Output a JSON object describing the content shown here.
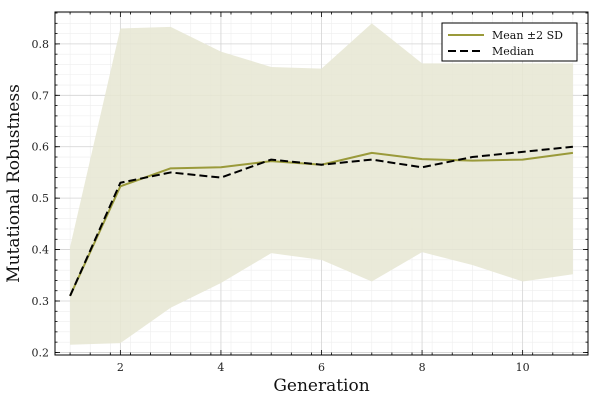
{
  "chart_data": {
    "type": "line",
    "title": "",
    "xlabel": "Generation",
    "ylabel": "Mutational Robustness",
    "xlim": [
      0.7,
      11.3
    ],
    "ylim": [
      0.195,
      0.862
    ],
    "xticks": [
      2,
      4,
      6,
      8,
      10
    ],
    "yticks": [
      0.2,
      0.3,
      0.4,
      0.5,
      0.6,
      0.7,
      0.8
    ],
    "grid": true,
    "minor_grid": true,
    "legend_position": "top-right",
    "x": [
      1,
      2,
      3,
      4,
      5,
      6,
      7,
      8,
      9,
      10,
      11
    ],
    "series": [
      {
        "name": "Mean ±2 SD",
        "style": "solid",
        "color": "#9a9a3a",
        "values": [
          0.31,
          0.523,
          0.558,
          0.56,
          0.572,
          0.565,
          0.588,
          0.576,
          0.573,
          0.575,
          0.588
        ],
        "band_upper": [
          0.405,
          0.83,
          0.833,
          0.785,
          0.755,
          0.752,
          0.84,
          0.762,
          0.762,
          0.762,
          0.762
        ],
        "band_lower": [
          0.215,
          0.218,
          0.287,
          0.335,
          0.393,
          0.38,
          0.338,
          0.395,
          0.37,
          0.338,
          0.352
        ],
        "band_color": "#e6e6d2"
      },
      {
        "name": "Median",
        "style": "dashed",
        "color": "#000000",
        "values": [
          0.31,
          0.53,
          0.55,
          0.54,
          0.575,
          0.565,
          0.575,
          0.56,
          0.58,
          0.59,
          0.6
        ]
      }
    ]
  }
}
